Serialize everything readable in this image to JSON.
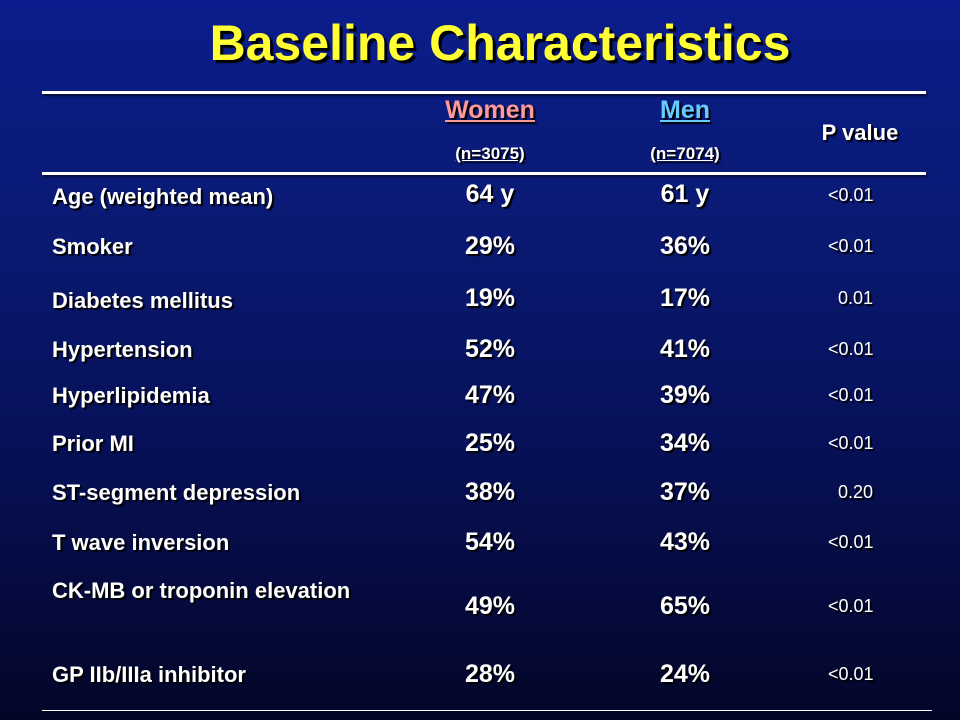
{
  "title": "Baseline Characteristics",
  "header": {
    "women": "Women",
    "women_n": "(n=3075)",
    "men": "Men",
    "men_n": "(n=7074)",
    "p_value": "P value"
  },
  "rows": [
    {
      "label": "Age (weighted mean)",
      "women": "64 y",
      "men": "61 y",
      "p": "<0.01"
    },
    {
      "label": "Smoker",
      "women": "29%",
      "men": "36%",
      "p": "<0.01"
    },
    {
      "label": "Diabetes mellitus",
      "women": "19%",
      "men": "17%",
      "p": "0.01"
    },
    {
      "label": "Hypertension",
      "women": "52%",
      "men": "41%",
      "p": "<0.01"
    },
    {
      "label": "Hyperlipidemia",
      "women": "47%",
      "men": "39%",
      "p": "<0.01"
    },
    {
      "label": "Prior MI",
      "women": "25%",
      "men": "34%",
      "p": "<0.01"
    },
    {
      "label": "ST-segment depression",
      "women": "38%",
      "men": "37%",
      "p": "0.20"
    },
    {
      "label": "T wave inversion",
      "women": "54%",
      "men": "43%",
      "p": "<0.01"
    },
    {
      "label": "CK-MB or troponin elevation",
      "women": "49%",
      "men": "65%",
      "p": "<0.01"
    },
    {
      "label": "GP IIb/IIIa inhibitor",
      "women": "28%",
      "men": "24%",
      "p": "<0.01"
    }
  ]
}
